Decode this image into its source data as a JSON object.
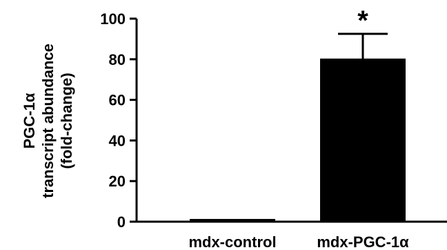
{
  "chart_data": {
    "type": "bar",
    "categories": [
      "mdx-control",
      "mdx-PGC-1α"
    ],
    "values": [
      1,
      80
    ],
    "error": [
      0.2,
      12.5
    ],
    "ylim": [
      0,
      100
    ],
    "yticks": [
      0,
      20,
      40,
      60,
      80,
      100
    ],
    "ylabel_lines": [
      "PGC-1α",
      "transcript abundance",
      "(fold-change)"
    ],
    "xlabel": "",
    "title": "",
    "annotations": [
      {
        "category": "mdx-PGC-1α",
        "text": "*"
      }
    ],
    "bar_color": "#000000",
    "grid": false,
    "legend": "none"
  }
}
